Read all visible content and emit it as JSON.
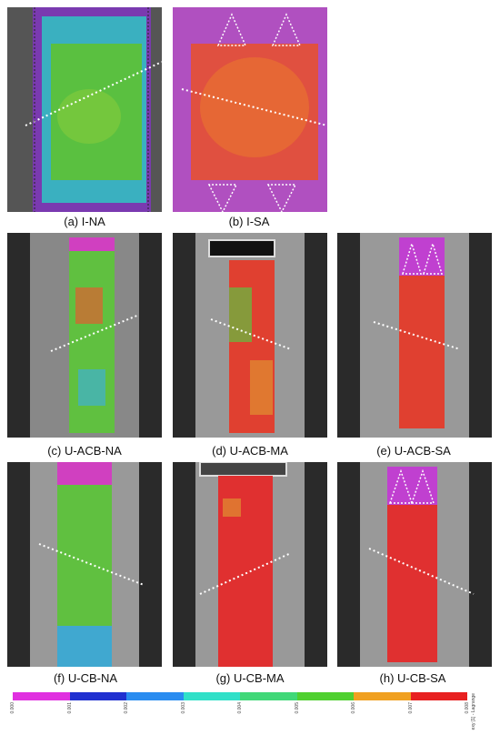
{
  "panels": [
    {
      "id": "a",
      "caption": "(a) I-NA"
    },
    {
      "id": "b",
      "caption": "(b) I-SA"
    },
    {
      "id": "c",
      "caption": "(c) U-ACB-NA"
    },
    {
      "id": "d",
      "caption": "(d) U-ACB-MA"
    },
    {
      "id": "e",
      "caption": "(e) U-ACB-SA"
    },
    {
      "id": "f",
      "caption": "(f) U-CB-NA"
    },
    {
      "id": "g",
      "caption": "(g) U-CB-MA"
    },
    {
      "id": "h",
      "caption": "(h) U-CB-SA"
    }
  ],
  "colorbar": {
    "label": "exy [1] - Lagrange",
    "ticks": [
      "0.000",
      "0.001",
      "0.002",
      "0.003",
      "0.004",
      "0.005",
      "0.006",
      "0.007",
      "0.008"
    ],
    "colors": [
      "#e030e0",
      "#2030d0",
      "#2a8cf0",
      "#30e0c8",
      "#40d878",
      "#50d030",
      "#f0a020",
      "#e82020"
    ]
  }
}
